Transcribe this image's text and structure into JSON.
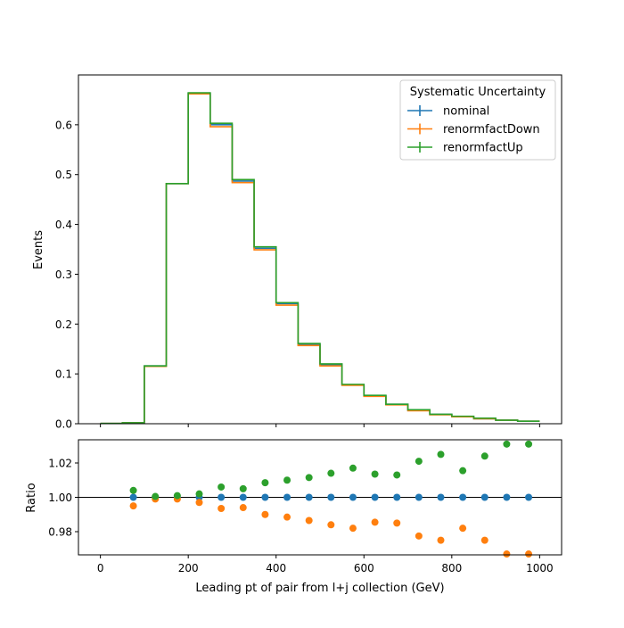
{
  "chart_data": [
    {
      "type": "step",
      "ylabel": "Events",
      "xlim": [
        -50,
        1050
      ],
      "ylim": [
        0,
        0.7
      ],
      "yticks": [
        "0.0",
        "0.1",
        "0.2",
        "0.3",
        "0.4",
        "0.5",
        "0.6"
      ],
      "bin_edges": [
        0,
        50,
        100,
        150,
        200,
        250,
        300,
        350,
        400,
        450,
        500,
        550,
        600,
        650,
        700,
        750,
        800,
        850,
        900,
        950,
        1000
      ],
      "legend": {
        "title": "Systematic Uncertainty",
        "placement": "top-right"
      },
      "series": [
        {
          "name": "nominal",
          "color": "#1f77b4",
          "values": [
            0.0005,
            0.002,
            0.116,
            0.482,
            0.663,
            0.6,
            0.487,
            0.352,
            0.241,
            0.159,
            0.118,
            0.078,
            0.056,
            0.039,
            0.027,
            0.019,
            0.014,
            0.01,
            0.007,
            0.005
          ]
        },
        {
          "name": "renormfactDown",
          "color": "#ff7f0e",
          "values": [
            0.0005,
            0.002,
            0.115,
            0.482,
            0.662,
            0.596,
            0.484,
            0.349,
            0.238,
            0.157,
            0.116,
            0.077,
            0.055,
            0.038,
            0.026,
            0.018,
            0.014,
            0.01,
            0.007,
            0.005
          ]
        },
        {
          "name": "renormfactUp",
          "color": "#2ca02c",
          "values": [
            0.0005,
            0.002,
            0.116,
            0.482,
            0.664,
            0.603,
            0.49,
            0.355,
            0.243,
            0.161,
            0.12,
            0.079,
            0.057,
            0.039,
            0.028,
            0.019,
            0.015,
            0.011,
            0.007,
            0.005
          ]
        }
      ]
    },
    {
      "type": "scatter",
      "xlabel": "Leading pt of pair from l+j collection (GeV)",
      "ylabel": "Ratio",
      "xlim": [
        -50,
        1050
      ],
      "ylim": [
        0.9665,
        1.0335
      ],
      "xticks": [
        "0",
        "200",
        "400",
        "600",
        "800",
        "1000"
      ],
      "yticks": [
        "0.98",
        "1.00",
        "1.02"
      ],
      "reference_line": 1.0,
      "x": [
        75,
        125,
        175,
        225,
        275,
        325,
        375,
        425,
        475,
        525,
        575,
        625,
        675,
        725,
        775,
        825,
        875,
        925,
        975
      ],
      "series": [
        {
          "name": "nominal",
          "color": "#1f77b4",
          "values": [
            1.0,
            1.0,
            1.0,
            1.0,
            1.0,
            1.0,
            1.0,
            1.0,
            1.0,
            1.0,
            1.0,
            1.0,
            1.0,
            1.0,
            1.0,
            1.0,
            1.0,
            1.0,
            1.0
          ]
        },
        {
          "name": "renormfactDown",
          "color": "#ff7f0e",
          "values": [
            0.995,
            0.999,
            0.999,
            0.997,
            0.9935,
            0.994,
            0.99,
            0.9885,
            0.9865,
            0.984,
            0.982,
            0.9855,
            0.985,
            0.9775,
            0.975,
            0.982,
            0.975,
            0.967,
            0.967
          ]
        },
        {
          "name": "renormfactUp",
          "color": "#2ca02c",
          "values": [
            1.004,
            1.0005,
            1.001,
            1.002,
            1.006,
            1.005,
            1.0085,
            1.01,
            1.0115,
            1.014,
            1.017,
            1.0135,
            1.013,
            1.021,
            1.025,
            1.0155,
            1.024,
            1.031,
            1.031
          ]
        }
      ]
    }
  ]
}
